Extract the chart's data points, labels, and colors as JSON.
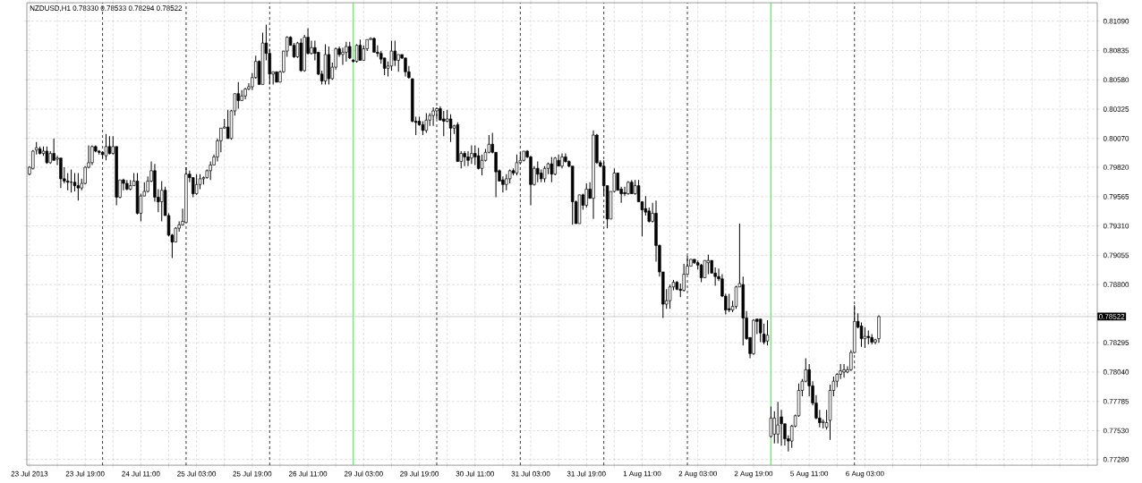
{
  "chart_data": {
    "type": "candlestick",
    "title": "NZDUSD,H1  0.78330 0.78533 0.78294 0.78522",
    "categories": [
      "23 Jul 2013",
      null,
      null,
      null,
      null,
      null,
      null,
      null,
      null,
      null,
      null,
      null,
      null,
      null,
      null,
      null,
      "23 Jul 19:00",
      null,
      null,
      null,
      null,
      null,
      null,
      null,
      null,
      null,
      null,
      null,
      null,
      null,
      null,
      null,
      "24 Jul 11:00",
      null,
      null,
      null,
      null,
      null,
      null,
      null,
      null,
      null,
      null,
      null,
      null,
      null,
      null,
      null,
      "25 Jul 03:00",
      null,
      null,
      null,
      null,
      null,
      null,
      null,
      null,
      null,
      null,
      null,
      null,
      null,
      null,
      null,
      "25 Jul 19:00",
      null,
      null,
      null,
      null,
      null,
      null,
      null,
      null,
      null,
      null,
      null,
      null,
      null,
      null,
      null,
      "26 Jul 11:00",
      null,
      null,
      null,
      null,
      null,
      null,
      null,
      null,
      null,
      null,
      null,
      null,
      null,
      null,
      null,
      "29 Jul 03:00",
      null,
      null,
      null,
      null,
      null,
      null,
      null,
      null,
      null,
      null,
      null,
      null,
      null,
      null,
      null,
      "29 Jul 19:00",
      null,
      null,
      null,
      null,
      null,
      null,
      null,
      null,
      null,
      null,
      null,
      null,
      null,
      null,
      null,
      "30 Jul 11:00",
      null,
      null,
      null,
      null,
      null,
      null,
      null,
      null,
      null,
      null,
      null,
      null,
      null,
      null,
      null,
      "31 Jul 03:00",
      null,
      null,
      null,
      null,
      null,
      null,
      null,
      null,
      null,
      null,
      null,
      null,
      null,
      null,
      null,
      "31 Jul 19:00",
      null,
      null,
      null,
      null,
      null,
      null,
      null,
      null,
      null,
      null,
      null,
      null,
      null,
      null,
      null,
      "1 Aug 11:00",
      null,
      null,
      null,
      null,
      null,
      null,
      null,
      null,
      null,
      null,
      null,
      null,
      null,
      null,
      null,
      "2 Aug 03:00",
      null,
      null,
      null,
      null,
      null,
      null,
      null,
      null,
      null,
      null,
      null,
      null,
      null,
      null,
      null,
      "2 Aug 19:00",
      null,
      null,
      null,
      null,
      null,
      null,
      null,
      null,
      null,
      null,
      null,
      null,
      null,
      null,
      null,
      "5 Aug 11:00",
      null,
      null,
      null,
      null,
      null,
      null,
      null,
      null,
      null,
      null,
      null,
      null,
      null,
      null,
      null,
      "6 Aug 03:00",
      null,
      null,
      null,
      null,
      null,
      null,
      null,
      null,
      null,
      null,
      null,
      null,
      null,
      null,
      null,
      null,
      null,
      null,
      null,
      null,
      null,
      null,
      null,
      null,
      null,
      null,
      null,
      null,
      null,
      null,
      null,
      null,
      null,
      null,
      null,
      null,
      null,
      null,
      null,
      null,
      null,
      null,
      null,
      null,
      null,
      null,
      null,
      null,
      null,
      null,
      null,
      null,
      null,
      null,
      null,
      null,
      null,
      null,
      null,
      null,
      null,
      null,
      null,
      null,
      null,
      null
    ],
    "ohlc": [
      [
        0.7976,
        0.7983,
        0.7975,
        0.7982
      ],
      [
        0.7981,
        0.7997,
        0.798,
        0.7996
      ],
      [
        0.7997,
        0.8004,
        0.7993,
        0.7999
      ],
      [
        0.7998,
        0.8,
        0.7993,
        0.7994
      ],
      [
        0.7994,
        0.8,
        0.7992,
        0.7996
      ],
      [
        0.7996,
        0.8,
        0.7985,
        0.7986
      ],
      [
        0.7986,
        0.7996,
        0.7985,
        0.7994
      ],
      [
        0.7994,
        0.8007,
        0.7988,
        0.7988
      ],
      [
        0.7989,
        0.7992,
        0.7984,
        0.799
      ],
      [
        0.799,
        0.799,
        0.7964,
        0.7972
      ],
      [
        0.7972,
        0.7982,
        0.7968,
        0.797
      ],
      [
        0.797,
        0.7977,
        0.7962,
        0.7969
      ],
      [
        0.7969,
        0.798,
        0.796,
        0.7969
      ],
      [
        0.7969,
        0.7977,
        0.7961,
        0.7966
      ],
      [
        0.7966,
        0.7977,
        0.7953,
        0.7964
      ],
      [
        0.7964,
        0.7972,
        0.7962,
        0.7968
      ],
      [
        0.7968,
        0.7983,
        0.7967,
        0.7982
      ],
      [
        0.7982,
        0.8001,
        0.7981,
        0.7986
      ],
      [
        0.7986,
        0.8001,
        0.7984,
        0.8
      ],
      [
        0.8,
        0.8001,
        0.7995,
        0.7996
      ],
      [
        0.7996,
        0.7997,
        0.7993,
        0.7995
      ],
      [
        0.7995,
        0.7996,
        0.799,
        0.7993
      ],
      [
        0.7992,
        0.8011,
        0.7988,
        0.8
      ],
      [
        0.8,
        0.8009,
        0.7993,
        0.7994
      ],
      [
        0.7994,
        0.8009,
        0.7993,
        0.8
      ],
      [
        0.8,
        0.8,
        0.7949,
        0.7956
      ],
      [
        0.7956,
        0.7971,
        0.7955,
        0.7971
      ],
      [
        0.7971,
        0.7972,
        0.7962,
        0.7968
      ],
      [
        0.7968,
        0.7971,
        0.7962,
        0.7963
      ],
      [
        0.7963,
        0.7971,
        0.7962,
        0.7966
      ],
      [
        0.7966,
        0.7977,
        0.7966,
        0.797
      ],
      [
        0.797,
        0.7977,
        0.7941,
        0.7942
      ],
      [
        0.7942,
        0.7959,
        0.7935,
        0.7957
      ],
      [
        0.7957,
        0.7969,
        0.7957,
        0.7961
      ],
      [
        0.7961,
        0.7974,
        0.796,
        0.797
      ],
      [
        0.797,
        0.7987,
        0.7969,
        0.7979
      ],
      [
        0.7979,
        0.7985,
        0.7952,
        0.7956
      ],
      [
        0.7956,
        0.7963,
        0.7943,
        0.7952
      ],
      [
        0.7952,
        0.797,
        0.7935,
        0.7962
      ],
      [
        0.7962,
        0.7965,
        0.794,
        0.794
      ],
      [
        0.794,
        0.7942,
        0.7922,
        0.7923
      ],
      [
        0.7923,
        0.7924,
        0.7903,
        0.7917
      ],
      [
        0.7917,
        0.793,
        0.7917,
        0.7929
      ],
      [
        0.7929,
        0.7935,
        0.7926,
        0.7932
      ],
      [
        0.7932,
        0.7946,
        0.7931,
        0.7935
      ],
      [
        0.7934,
        0.7982,
        0.7934,
        0.7976
      ],
      [
        0.7976,
        0.7979,
        0.7969,
        0.7973
      ],
      [
        0.7973,
        0.7973,
        0.7956,
        0.7959
      ],
      [
        0.7959,
        0.7976,
        0.7958,
        0.7967
      ],
      [
        0.7967,
        0.7976,
        0.7963,
        0.7972
      ],
      [
        0.7972,
        0.7974,
        0.7967,
        0.7973
      ],
      [
        0.7973,
        0.798,
        0.7972,
        0.7979
      ],
      [
        0.7979,
        0.7987,
        0.7971,
        0.7984
      ],
      [
        0.7984,
        0.7993,
        0.7984,
        0.7991
      ],
      [
        0.7991,
        0.8007,
        0.7987,
        0.8005
      ],
      [
        0.8005,
        0.8016,
        0.7995,
        0.8016
      ],
      [
        0.8016,
        0.8024,
        0.8016,
        0.8017
      ],
      [
        0.8017,
        0.8032,
        0.8007,
        0.8007
      ],
      [
        0.8007,
        0.8032,
        0.8006,
        0.8031
      ],
      [
        0.8031,
        0.8046,
        0.8027,
        0.8046
      ],
      [
        0.8046,
        0.8056,
        0.8033,
        0.804
      ],
      [
        0.804,
        0.8049,
        0.804,
        0.8044
      ],
      [
        0.8044,
        0.8051,
        0.8041,
        0.805
      ],
      [
        0.805,
        0.8055,
        0.8049,
        0.8052
      ],
      [
        0.8052,
        0.8064,
        0.8049,
        0.806
      ],
      [
        0.806,
        0.8079,
        0.8059,
        0.8074
      ],
      [
        0.8074,
        0.8075,
        0.8054,
        0.8054
      ],
      [
        0.8054,
        0.8099,
        0.8054,
        0.809
      ],
      [
        0.809,
        0.8106,
        0.8075,
        0.8081
      ],
      [
        0.8081,
        0.8085,
        0.8054,
        0.8063
      ],
      [
        0.8063,
        0.8065,
        0.8054,
        0.8065
      ],
      [
        0.8065,
        0.8065,
        0.8056,
        0.8056
      ],
      [
        0.8056,
        0.8066,
        0.8056,
        0.8065
      ],
      [
        0.8065,
        0.8083,
        0.8064,
        0.8083
      ],
      [
        0.8083,
        0.8096,
        0.8078,
        0.8095
      ],
      [
        0.8095,
        0.8096,
        0.8088,
        0.8088
      ],
      [
        0.8088,
        0.809,
        0.8077,
        0.8078
      ],
      [
        0.8078,
        0.8091,
        0.8077,
        0.809
      ],
      [
        0.809,
        0.8094,
        0.8065,
        0.8066
      ],
      [
        0.8066,
        0.8097,
        0.8065,
        0.8095
      ],
      [
        0.8095,
        0.8103,
        0.808,
        0.8081
      ],
      [
        0.8081,
        0.8092,
        0.808,
        0.8086
      ],
      [
        0.8086,
        0.8092,
        0.8075,
        0.8081
      ],
      [
        0.8082,
        0.8082,
        0.8062,
        0.8063
      ],
      [
        0.8063,
        0.8066,
        0.8054,
        0.8057
      ],
      [
        0.8057,
        0.8089,
        0.8054,
        0.808
      ],
      [
        0.808,
        0.8087,
        0.8054,
        0.8059
      ],
      [
        0.8059,
        0.8073,
        0.8058,
        0.8069
      ],
      [
        0.8069,
        0.8086,
        0.8067,
        0.8085
      ],
      [
        0.8085,
        0.8087,
        0.8078,
        0.808
      ],
      [
        0.808,
        0.8086,
        0.8071,
        0.8082
      ],
      [
        0.8082,
        0.8091,
        0.8074,
        0.8087
      ],
      [
        0.8087,
        0.8091,
        0.8076,
        0.8077
      ],
      [
        0.8075,
        0.8076,
        0.8073,
        0.8074
      ],
      [
        0.8074,
        0.8089,
        0.8073,
        0.8088
      ],
      [
        0.8088,
        0.8093,
        0.8075,
        0.8075
      ],
      [
        0.8075,
        0.8088,
        0.8075,
        0.8085
      ],
      [
        0.8085,
        0.8093,
        0.8083,
        0.8093
      ],
      [
        0.8093,
        0.8095,
        0.8093,
        0.8094
      ],
      [
        0.8094,
        0.8095,
        0.8082,
        0.8082
      ],
      [
        0.8082,
        0.8088,
        0.8078,
        0.8081
      ],
      [
        0.8081,
        0.8083,
        0.8072,
        0.8076
      ],
      [
        0.8077,
        0.8077,
        0.8062,
        0.8068
      ],
      [
        0.8068,
        0.8074,
        0.8061,
        0.807
      ],
      [
        0.807,
        0.8092,
        0.8066,
        0.8083
      ],
      [
        0.8083,
        0.8092,
        0.807,
        0.8075
      ],
      [
        0.8075,
        0.808,
        0.8065,
        0.808
      ],
      [
        0.808,
        0.808,
        0.8076,
        0.8077
      ],
      [
        0.8077,
        0.8077,
        0.8061,
        0.8065
      ],
      [
        0.8065,
        0.807,
        0.8059,
        0.806
      ],
      [
        0.8059,
        0.8059,
        0.8021,
        0.8022
      ],
      [
        0.8022,
        0.8026,
        0.801,
        0.8021
      ],
      [
        0.8022,
        0.8026,
        0.8018,
        0.8019
      ],
      [
        0.8019,
        0.8022,
        0.801,
        0.8014
      ],
      [
        0.8014,
        0.8029,
        0.8012,
        0.8023
      ],
      [
        0.8023,
        0.8029,
        0.8018,
        0.8027
      ],
      [
        0.8027,
        0.8034,
        0.8018,
        0.8031
      ],
      [
        0.8031,
        0.8034,
        0.8024,
        0.8033
      ],
      [
        0.8033,
        0.8035,
        0.8023,
        0.8023
      ],
      [
        0.8024,
        0.8031,
        0.8009,
        0.8022
      ],
      [
        0.8022,
        0.8032,
        0.8021,
        0.8024
      ],
      [
        0.8024,
        0.8028,
        0.8004,
        0.8016
      ],
      [
        0.8016,
        0.8019,
        0.8011,
        0.8018
      ],
      [
        0.8019,
        0.8021,
        0.7987,
        0.7987
      ],
      [
        0.7987,
        0.7996,
        0.7981,
        0.7994
      ],
      [
        0.7994,
        0.7996,
        0.7983,
        0.7991
      ],
      [
        0.7991,
        0.7996,
        0.7983,
        0.7988
      ],
      [
        0.799,
        0.8001,
        0.7985,
        0.7994
      ],
      [
        0.7994,
        0.8001,
        0.7984,
        0.7991
      ],
      [
        0.7992,
        0.7999,
        0.798,
        0.7981
      ],
      [
        0.7981,
        0.7993,
        0.7975,
        0.7988
      ],
      [
        0.7988,
        0.7998,
        0.7987,
        0.7995
      ],
      [
        0.7995,
        0.801,
        0.7994,
        0.8002
      ],
      [
        0.8002,
        0.8012,
        0.7994,
        0.7995
      ],
      [
        0.7995,
        0.7995,
        0.7956,
        0.7978
      ],
      [
        0.7979,
        0.798,
        0.797,
        0.797
      ],
      [
        0.7971,
        0.7974,
        0.796,
        0.7967
      ],
      [
        0.7967,
        0.7976,
        0.7962,
        0.7972
      ],
      [
        0.7972,
        0.798,
        0.7968,
        0.7979
      ],
      [
        0.7979,
        0.7981,
        0.7975,
        0.7977
      ],
      [
        0.7977,
        0.7993,
        0.7975,
        0.7986
      ],
      [
        0.7986,
        0.7995,
        0.7985,
        0.7988
      ],
      [
        0.7988,
        0.7996,
        0.7987,
        0.7996
      ],
      [
        0.7996,
        0.7997,
        0.799,
        0.7991
      ],
      [
        0.7991,
        0.7992,
        0.7949,
        0.7967
      ],
      [
        0.7967,
        0.7983,
        0.7966,
        0.7981
      ],
      [
        0.7981,
        0.7987,
        0.7969,
        0.7976
      ],
      [
        0.7977,
        0.798,
        0.7969,
        0.7972
      ],
      [
        0.7972,
        0.7983,
        0.7969,
        0.7981
      ],
      [
        0.7981,
        0.7986,
        0.7976,
        0.7985
      ],
      [
        0.7985,
        0.7991,
        0.7969,
        0.7976
      ],
      [
        0.7976,
        0.7991,
        0.7975,
        0.799
      ],
      [
        0.7988,
        0.7993,
        0.7983,
        0.7983
      ],
      [
        0.7983,
        0.7994,
        0.7981,
        0.7991
      ],
      [
        0.7991,
        0.7994,
        0.7986,
        0.7987
      ],
      [
        0.7987,
        0.7988,
        0.7982,
        0.7983
      ],
      [
        0.7983,
        0.7983,
        0.7932,
        0.7952
      ],
      [
        0.7952,
        0.7953,
        0.7933,
        0.7933
      ],
      [
        0.7933,
        0.7958,
        0.7933,
        0.7958
      ],
      [
        0.7958,
        0.7959,
        0.7945,
        0.7949
      ],
      [
        0.7949,
        0.7968,
        0.7947,
        0.7963
      ],
      [
        0.7963,
        0.7969,
        0.7955,
        0.7955
      ],
      [
        0.7955,
        0.8014,
        0.7937,
        0.801
      ],
      [
        0.801,
        0.8011,
        0.7985,
        0.7986
      ],
      [
        0.7986,
        0.7988,
        0.7982,
        0.7983
      ],
      [
        0.7983,
        0.7988,
        0.7957,
        0.7966
      ],
      [
        0.7966,
        0.7966,
        0.7929,
        0.7937
      ],
      [
        0.7937,
        0.7961,
        0.7937,
        0.7961
      ],
      [
        0.7961,
        0.7981,
        0.796,
        0.7977
      ],
      [
        0.7977,
        0.7977,
        0.7962,
        0.7962
      ],
      [
        0.7963,
        0.7965,
        0.7951,
        0.7959
      ],
      [
        0.796,
        0.7965,
        0.7957,
        0.7959
      ],
      [
        0.7959,
        0.797,
        0.7958,
        0.7969
      ],
      [
        0.7969,
        0.7971,
        0.7959,
        0.7959
      ],
      [
        0.7959,
        0.7971,
        0.7958,
        0.7966
      ],
      [
        0.7966,
        0.7971,
        0.7952,
        0.7952
      ],
      [
        0.7952,
        0.7952,
        0.7922,
        0.7945
      ],
      [
        0.7946,
        0.7957,
        0.794,
        0.7943
      ],
      [
        0.7944,
        0.7947,
        0.7934,
        0.7935
      ],
      [
        0.7935,
        0.7951,
        0.7934,
        0.7942
      ],
      [
        0.7942,
        0.7953,
        0.79,
        0.7914
      ],
      [
        0.7914,
        0.7915,
        0.7887,
        0.7891
      ],
      [
        0.7891,
        0.7891,
        0.7851,
        0.7863
      ],
      [
        0.7863,
        0.7876,
        0.7859,
        0.7866
      ],
      [
        0.7866,
        0.788,
        0.7859,
        0.7878
      ],
      [
        0.7878,
        0.7884,
        0.7875,
        0.7882
      ],
      [
        0.7882,
        0.7883,
        0.7875,
        0.7876
      ],
      [
        0.7876,
        0.7881,
        0.7869,
        0.7875
      ],
      [
        0.7875,
        0.7898,
        0.7874,
        0.7889
      ],
      [
        0.7889,
        0.7905,
        0.7889,
        0.7896
      ],
      [
        0.7896,
        0.7902,
        0.7896,
        0.7902
      ],
      [
        0.7902,
        0.7902,
        0.7898,
        0.7899
      ],
      [
        0.7899,
        0.7901,
        0.7893,
        0.7897
      ],
      [
        0.7897,
        0.7898,
        0.7882,
        0.7886
      ],
      [
        0.7886,
        0.7901,
        0.7886,
        0.7901
      ],
      [
        0.7899,
        0.7906,
        0.7889,
        0.7901
      ],
      [
        0.7901,
        0.7901,
        0.789,
        0.789
      ],
      [
        0.789,
        0.7895,
        0.7879,
        0.7887
      ],
      [
        0.7887,
        0.7894,
        0.7883,
        0.7885
      ],
      [
        0.7885,
        0.7889,
        0.7869,
        0.787
      ],
      [
        0.787,
        0.7872,
        0.7854,
        0.7858
      ],
      [
        0.7859,
        0.7872,
        0.7856,
        0.7858
      ],
      [
        0.7858,
        0.7866,
        0.7856,
        0.7861
      ],
      [
        0.7861,
        0.7879,
        0.7859,
        0.7878
      ],
      [
        0.7878,
        0.7933,
        0.7878,
        0.7881
      ],
      [
        0.788,
        0.7887,
        0.7827,
        0.7851
      ],
      [
        0.7851,
        0.7857,
        0.7832,
        0.7833
      ],
      [
        0.7834,
        0.7834,
        0.7816,
        0.782
      ],
      [
        0.782,
        0.785,
        0.7819,
        0.7849
      ],
      [
        0.785,
        0.785,
        0.7837,
        0.7848
      ],
      [
        0.785,
        0.785,
        0.783,
        0.7838
      ],
      [
        0.7837,
        0.7846,
        0.7828,
        0.783
      ],
      [
        0.7831,
        0.7849,
        0.7827,
        0.7836
      ],
      [
        0.7748,
        0.7774,
        0.7747,
        0.7764
      ],
      [
        0.775,
        0.777,
        0.7742,
        0.7764
      ],
      [
        0.775,
        0.7778,
        0.7742,
        0.7758
      ],
      [
        0.7765,
        0.7771,
        0.774,
        0.7759
      ],
      [
        0.7759,
        0.7759,
        0.774,
        0.7746
      ],
      [
        0.7746,
        0.7749,
        0.7735,
        0.7744
      ],
      [
        0.7744,
        0.7758,
        0.7738,
        0.7757
      ],
      [
        0.7757,
        0.7767,
        0.7756,
        0.7766
      ],
      [
        0.7766,
        0.7794,
        0.7765,
        0.7788
      ],
      [
        0.7788,
        0.7798,
        0.7783,
        0.7796
      ],
      [
        0.7796,
        0.7816,
        0.7795,
        0.7806
      ],
      [
        0.7806,
        0.7811,
        0.7783,
        0.7792
      ],
      [
        0.7792,
        0.7796,
        0.7775,
        0.7777
      ],
      [
        0.7777,
        0.7784,
        0.7763,
        0.7764
      ],
      [
        0.7764,
        0.7771,
        0.7756,
        0.776
      ],
      [
        0.776,
        0.7763,
        0.7755,
        0.7761
      ],
      [
        0.7756,
        0.7771,
        0.7754,
        0.776
      ],
      [
        0.7762,
        0.7793,
        0.7745,
        0.7788
      ],
      [
        0.7788,
        0.78,
        0.7783,
        0.7796
      ],
      [
        0.7796,
        0.7803,
        0.7791,
        0.7802
      ],
      [
        0.7802,
        0.7811,
        0.7798,
        0.7805
      ],
      [
        0.7804,
        0.7811,
        0.7799,
        0.7806
      ],
      [
        0.7804,
        0.7809,
        0.7803,
        0.7806
      ],
      [
        0.7806,
        0.7823,
        0.7805,
        0.7821
      ],
      [
        0.7821,
        0.7862,
        0.782,
        0.7848
      ],
      [
        0.7848,
        0.7855,
        0.7842,
        0.7843
      ],
      [
        0.7844,
        0.7847,
        0.7826,
        0.7833
      ],
      [
        0.7833,
        0.7843,
        0.7825,
        0.7835
      ],
      [
        0.7835,
        0.784,
        0.7828,
        0.7834
      ],
      [
        0.7834,
        0.7837,
        0.7828,
        0.783
      ],
      [
        0.783,
        0.7833,
        0.7828,
        0.7832
      ],
      [
        0.7833,
        0.78533,
        0.78294,
        0.78522
      ],
      null,
      null,
      null,
      null,
      null,
      null,
      null,
      null,
      null,
      null,
      null,
      null,
      null,
      null,
      null,
      null,
      null,
      null,
      null,
      null,
      null,
      null,
      null,
      null,
      null,
      null,
      null,
      null,
      null,
      null,
      null,
      null,
      null,
      null,
      null,
      null,
      null,
      null,
      null,
      null,
      null,
      null,
      null,
      null,
      null,
      null,
      null,
      null,
      null,
      null,
      null,
      null,
      null,
      null,
      null,
      null,
      null,
      null,
      null,
      null,
      null,
      null
    ],
    "ylim": [
      0.7723,
      0.8125
    ],
    "yticks": [
      {
        "value": 0.7728,
        "label": "0.77280"
      },
      {
        "value": 0.7753,
        "label": "0.77530"
      },
      {
        "value": 0.77785,
        "label": "0.77785"
      },
      {
        "value": 0.7804,
        "label": "0.78040"
      },
      {
        "value": 0.78295,
        "label": "0.78295"
      },
      {
        "value": 0.78545,
        "label": null
      },
      {
        "value": 0.788,
        "label": "0.78800"
      },
      {
        "value": 0.79055,
        "label": "0.79055"
      },
      {
        "value": 0.7931,
        "label": "0.79310"
      },
      {
        "value": 0.79565,
        "label": "0.79565"
      },
      {
        "value": 0.7982,
        "label": "0.79820"
      },
      {
        "value": 0.8007,
        "label": "0.80070"
      },
      {
        "value": 0.80325,
        "label": "0.80325"
      },
      {
        "value": 0.8058,
        "label": "0.80580"
      },
      {
        "value": 0.80835,
        "label": "0.80835"
      },
      {
        "value": 0.8109,
        "label": "0.81090"
      }
    ],
    "grid": true,
    "ref_lines": [
      {
        "axis": "y",
        "value": 0.78522,
        "label": "0.78522",
        "color": "#c0c0c0",
        "line_style": "solid"
      }
    ]
  }
}
